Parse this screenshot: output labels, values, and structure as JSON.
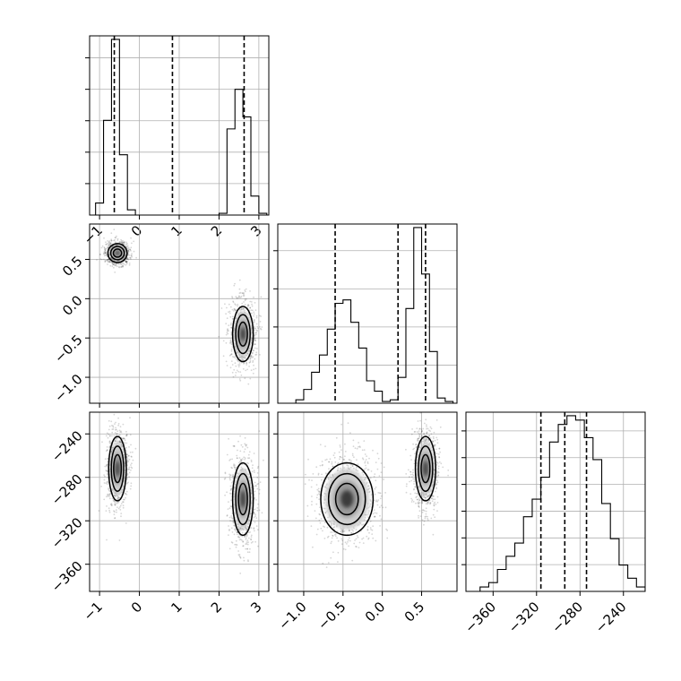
{
  "chart_data": [
    {
      "panel": "hist-param0",
      "type": "histogram",
      "x_ticks": [
        "−1",
        "0",
        "1",
        "2",
        "3"
      ],
      "x_tick_values": [
        -1,
        0,
        1,
        2,
        3
      ],
      "xlim": [
        -1.25,
        3.25
      ],
      "bin_edges": [
        -1.1,
        -0.9,
        -0.7,
        -0.5,
        -0.3,
        -0.1,
        0.1,
        2.0,
        2.2,
        2.4,
        2.6,
        2.8,
        3.0,
        3.2
      ],
      "counts": [
        7,
        55,
        102,
        35,
        3,
        0,
        0,
        1,
        50,
        73,
        57,
        11,
        1
      ],
      "quantile_lines": [
        -0.63,
        0.83,
        2.63
      ]
    },
    {
      "panel": "scatter-param1-vs-param0",
      "type": "scatter",
      "y_ticks": [
        "−1.0",
        "−0.5",
        "0.0",
        "0.5"
      ],
      "y_tick_values": [
        -1.0,
        -0.5,
        0.0,
        0.5
      ],
      "ylim": [
        -1.33,
        0.95
      ],
      "clusters": [
        {
          "center": [
            -0.55,
            0.58
          ],
          "spread": [
            0.13,
            0.065
          ]
        },
        {
          "center": [
            2.6,
            -0.45
          ],
          "spread": [
            0.14,
            0.19
          ]
        }
      ]
    },
    {
      "panel": "hist-param1",
      "type": "histogram",
      "xlim": [
        -1.33,
        0.95
      ],
      "bin_edges": [
        -1.1,
        -1.0,
        -0.9,
        -0.8,
        -0.7,
        -0.6,
        -0.5,
        -0.4,
        -0.3,
        -0.2,
        -0.1,
        0.0,
        0.1,
        0.2,
        0.3,
        0.4,
        0.5,
        0.6,
        0.7,
        0.8,
        0.9
      ],
      "counts": [
        2,
        8,
        18,
        28,
        43,
        58,
        60,
        47,
        32,
        13,
        7,
        1,
        2,
        15,
        55,
        102,
        75,
        30,
        3,
        1
      ],
      "quantile_lines": [
        -0.6,
        0.2,
        0.55
      ]
    },
    {
      "panel": "scatter-param2-vs-param0",
      "type": "scatter",
      "x_ticks": [
        "−1",
        "0",
        "1",
        "2",
        "3"
      ],
      "y_ticks": [
        "−240",
        "−280",
        "−320",
        "−360"
      ],
      "y_tick_values": [
        -240,
        -280,
        -320,
        -360
      ],
      "ylim": [
        -385,
        -220
      ],
      "clusters": [
        {
          "center": [
            -0.55,
            -272
          ],
          "spread": [
            0.12,
            16
          ]
        },
        {
          "center": [
            2.6,
            -300
          ],
          "spread": [
            0.14,
            18
          ]
        }
      ]
    },
    {
      "panel": "scatter-param2-vs-param1",
      "type": "scatter",
      "x_ticks": [
        "−1.0",
        "−0.5",
        "0.0",
        "0.5"
      ],
      "x_tick_values": [
        -1.0,
        -0.5,
        0.0,
        0.5
      ],
      "clusters": [
        {
          "center": [
            -0.45,
            -300
          ],
          "spread": [
            0.18,
            18
          ]
        },
        {
          "center": [
            0.55,
            -272
          ],
          "spread": [
            0.07,
            16
          ]
        }
      ]
    },
    {
      "panel": "hist-param2",
      "type": "histogram",
      "x_ticks": [
        "−360",
        "−320",
        "−280",
        "−240"
      ],
      "x_tick_values": [
        -360,
        -320,
        -280,
        -240
      ],
      "xlim": [
        -385,
        -220
      ],
      "bin_edges": [
        -380,
        -372,
        -364,
        -356,
        -348,
        -340,
        -332,
        -324,
        -316,
        -308,
        -300,
        -292,
        -284,
        -276,
        -268,
        -260,
        -252,
        -244,
        -236,
        -228,
        -220
      ],
      "counts": [
        0,
        1,
        2,
        5,
        8,
        11,
        17,
        21,
        26,
        34,
        38,
        40,
        39,
        35,
        30,
        20,
        12,
        6,
        3,
        1
      ],
      "quantile_lines": [
        -316,
        -294,
        -274
      ]
    }
  ]
}
